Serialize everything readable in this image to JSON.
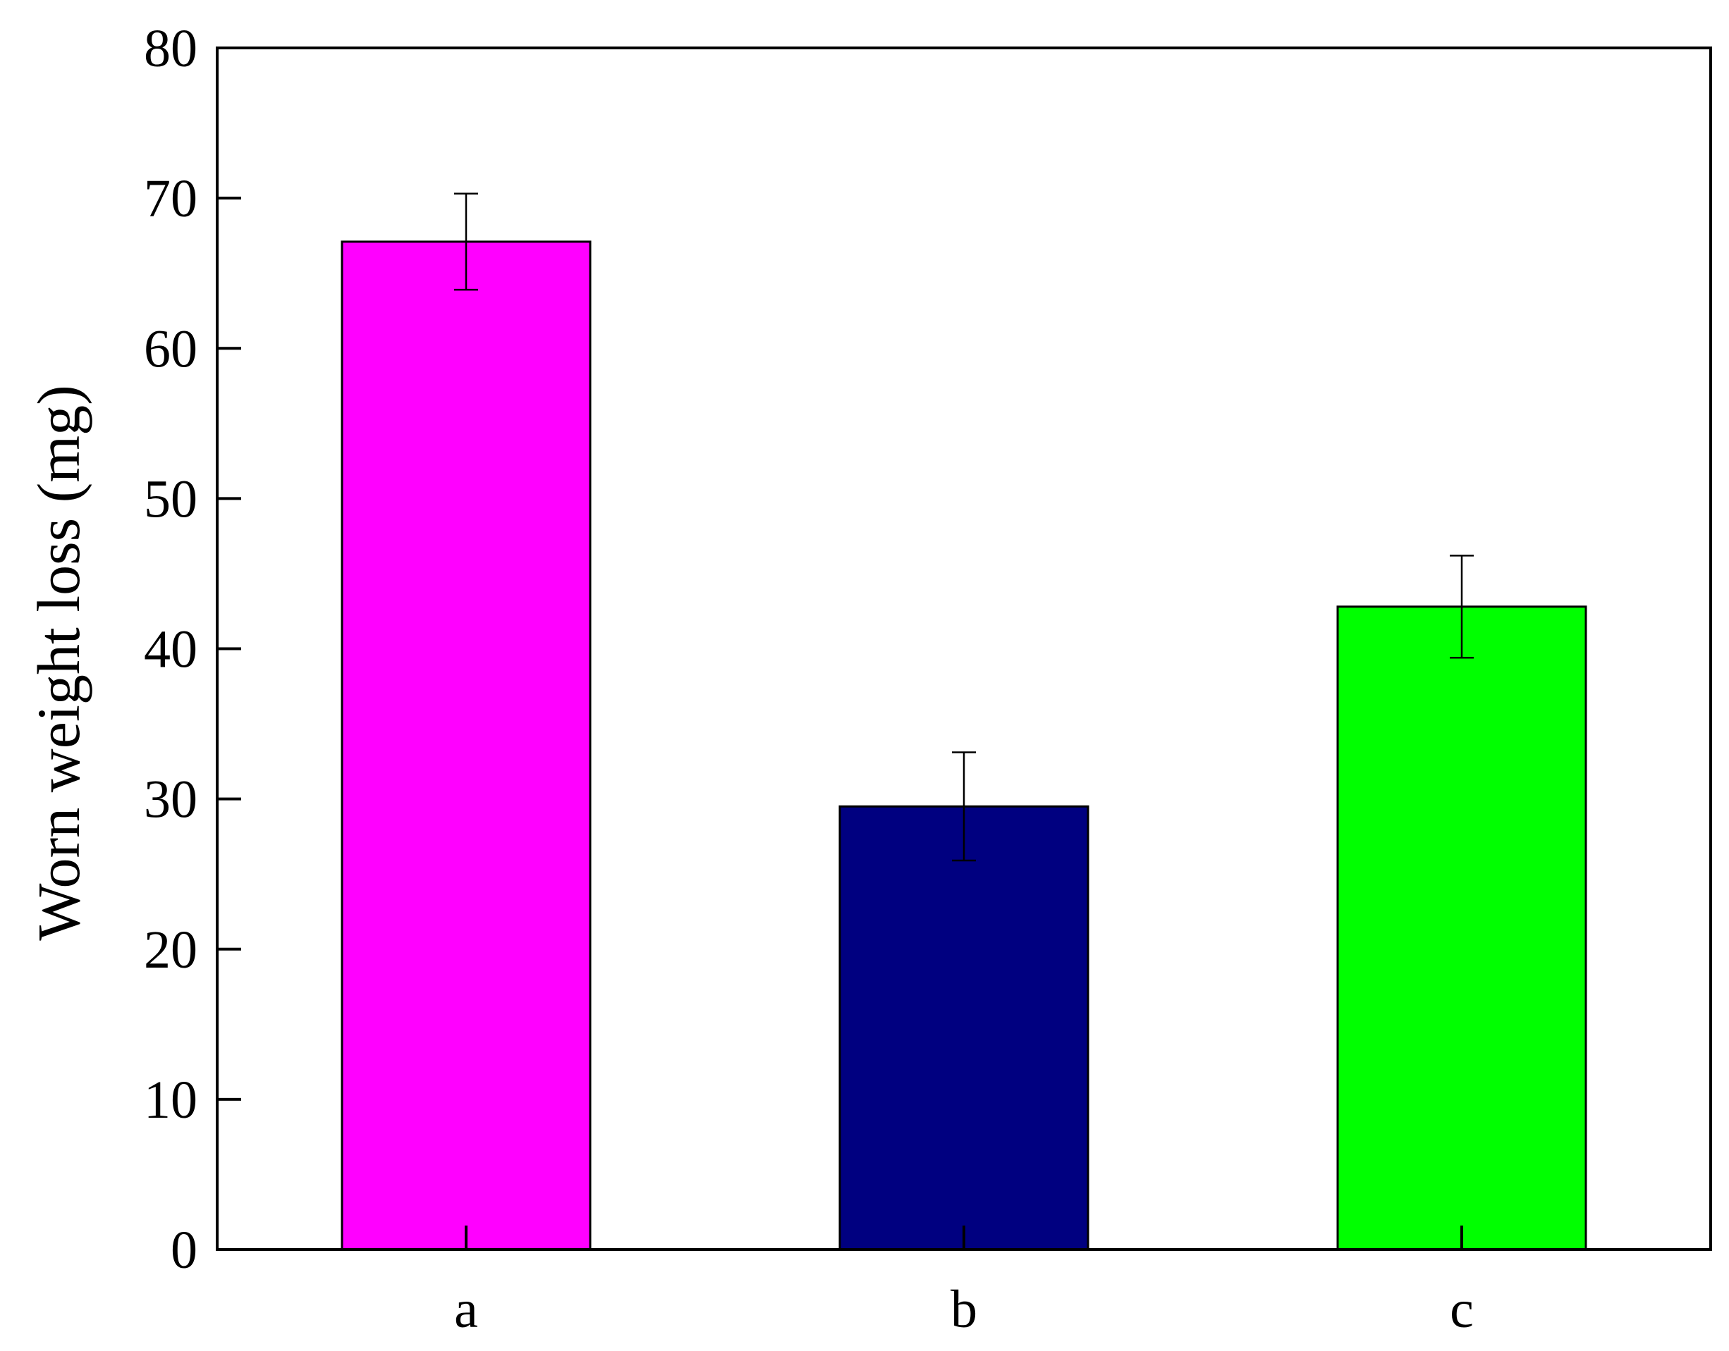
{
  "chart_data": {
    "type": "bar",
    "title": "",
    "xlabel": "",
    "ylabel": "Worn weight loss (mg)",
    "categories": [
      "a",
      "b",
      "c"
    ],
    "values": [
      67.1,
      29.5,
      42.8
    ],
    "errors": [
      3.2,
      3.6,
      3.4
    ],
    "colors": [
      "#ff00ff",
      "#000080",
      "#00ff00"
    ],
    "ylim": [
      0,
      80
    ],
    "yticks": [
      0,
      10,
      20,
      30,
      40,
      50,
      60,
      70,
      80
    ],
    "grid": false,
    "legend": "none"
  }
}
